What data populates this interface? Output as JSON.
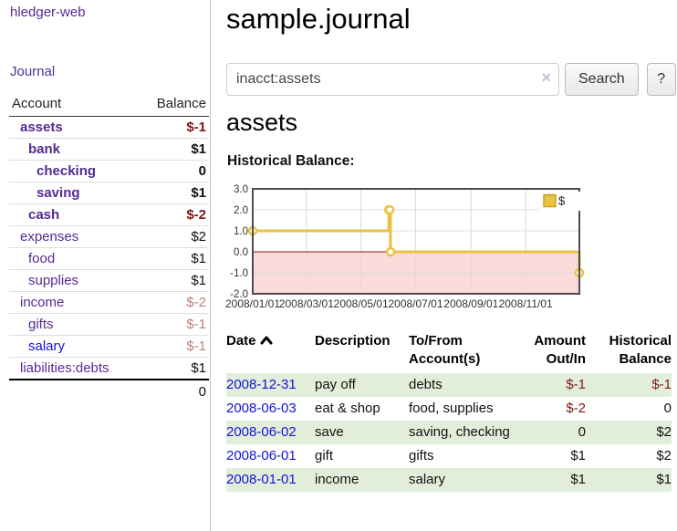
{
  "colors": {
    "link_purple": "#552a93",
    "link_blue": "#1414d6",
    "negative_strong": "#7c1818",
    "negative_soft": "#bb8080",
    "row_stripe_green": "#e2eeda",
    "chart_line_yellow": "#e9c343",
    "chart_negative_fill": "#fbdada",
    "chart_zero_line": "#8b1a1a"
  },
  "sidebar": {
    "brand": "hledger-web",
    "nav_journal": "Journal",
    "accounts": {
      "header_account": "Account",
      "header_balance": "Balance",
      "rows": [
        {
          "name": "assets",
          "indent": 1,
          "bold": true,
          "balance": "$-1",
          "balance_style": "neg-strong",
          "link_style": "purple"
        },
        {
          "name": "bank",
          "indent": 2,
          "bold": true,
          "balance": "$1",
          "balance_style": "plain",
          "link_style": "purple"
        },
        {
          "name": "checking",
          "indent": 3,
          "bold": true,
          "balance": "0",
          "balance_style": "plain",
          "link_style": "purple"
        },
        {
          "name": "saving",
          "indent": 3,
          "bold": true,
          "balance": "$1",
          "balance_style": "plain",
          "link_style": "purple"
        },
        {
          "name": "cash",
          "indent": 2,
          "bold": true,
          "balance": "$-2",
          "balance_style": "neg-strong",
          "link_style": "purple"
        },
        {
          "name": "expenses",
          "indent": 1,
          "bold": false,
          "balance": "$2",
          "balance_style": "plain",
          "link_style": "purple"
        },
        {
          "name": "food",
          "indent": 2,
          "bold": false,
          "balance": "$1",
          "balance_style": "plain",
          "link_style": "purple"
        },
        {
          "name": "supplies",
          "indent": 2,
          "bold": false,
          "balance": "$1",
          "balance_style": "plain",
          "link_style": "purple"
        },
        {
          "name": "income",
          "indent": 1,
          "bold": false,
          "balance": "$-2",
          "balance_style": "neg-soft",
          "link_style": "purple"
        },
        {
          "name": "gifts",
          "indent": 2,
          "bold": false,
          "balance": "$-1",
          "balance_style": "neg-soft",
          "link_style": "purple"
        },
        {
          "name": "salary",
          "indent": 2,
          "bold": false,
          "balance": "$-1",
          "balance_style": "neg-soft",
          "link_style": "blue"
        },
        {
          "name": "liabilities:debts",
          "indent": 1,
          "bold": false,
          "balance": "$1",
          "balance_style": "plain",
          "link_style": "purple"
        }
      ],
      "total": "0"
    }
  },
  "main": {
    "title": "sample.journal",
    "search": {
      "value": "inacct:assets",
      "clear_icon": "×",
      "search_button": "Search",
      "help_button": "?"
    },
    "account_heading": "assets",
    "chart_heading": "Historical Balance:",
    "register": {
      "headers": {
        "date": "Date",
        "description": "Description",
        "accounts": "To/From Account(s)",
        "amount": "Amount Out/In",
        "balance": "Historical Balance"
      },
      "rows": [
        {
          "date": "2008-12-31",
          "description": "pay off",
          "accounts": "debts",
          "amount": "$-1",
          "amount_negative": true,
          "balance": "$-1",
          "balance_negative": true
        },
        {
          "date": "2008-06-03",
          "description": "eat & shop",
          "accounts": "food, supplies",
          "amount": "$-2",
          "amount_negative": true,
          "balance": "0",
          "balance_negative": false
        },
        {
          "date": "2008-06-02",
          "description": "save",
          "accounts": "saving, checking",
          "amount": "0",
          "amount_negative": false,
          "balance": "$2",
          "balance_negative": false
        },
        {
          "date": "2008-06-01",
          "description": "gift",
          "accounts": "gifts",
          "amount": "$1",
          "amount_negative": false,
          "balance": "$2",
          "balance_negative": false
        },
        {
          "date": "2008-01-01",
          "description": "income",
          "accounts": "salary",
          "amount": "$1",
          "amount_negative": false,
          "balance": "$1",
          "balance_negative": false
        }
      ]
    }
  },
  "chart_data": {
    "type": "line",
    "title": "Historical Balance:",
    "step": true,
    "series": [
      {
        "name": "$",
        "color": "#e9c343",
        "points": [
          {
            "date": "2008-01-01",
            "day": 0,
            "value": 1
          },
          {
            "date": "2008-06-01",
            "day": 152,
            "value": 2
          },
          {
            "date": "2008-06-02",
            "day": 153,
            "value": 2
          },
          {
            "date": "2008-06-03",
            "day": 154,
            "value": 0
          },
          {
            "date": "2008-12-31",
            "day": 365,
            "value": -1
          }
        ]
      }
    ],
    "x_ticks": [
      {
        "label": "2008/01/01",
        "day": 0
      },
      {
        "label": "2008/03/01",
        "day": 60
      },
      {
        "label": "2008/05/01",
        "day": 121
      },
      {
        "label": "2008/07/01",
        "day": 182
      },
      {
        "label": "2008/09/01",
        "day": 244
      },
      {
        "label": "2008/11/01",
        "day": 305
      }
    ],
    "y_ticks": [
      3.0,
      2.0,
      1.0,
      0.0,
      -1.0,
      -2.0
    ],
    "ylim": [
      -2,
      3
    ],
    "xlim_days": [
      0,
      365
    ],
    "grid": true,
    "legend_position": "top-right",
    "negative_region_fill": "#fbdada",
    "zero_line_color": "#8b1a1a"
  }
}
